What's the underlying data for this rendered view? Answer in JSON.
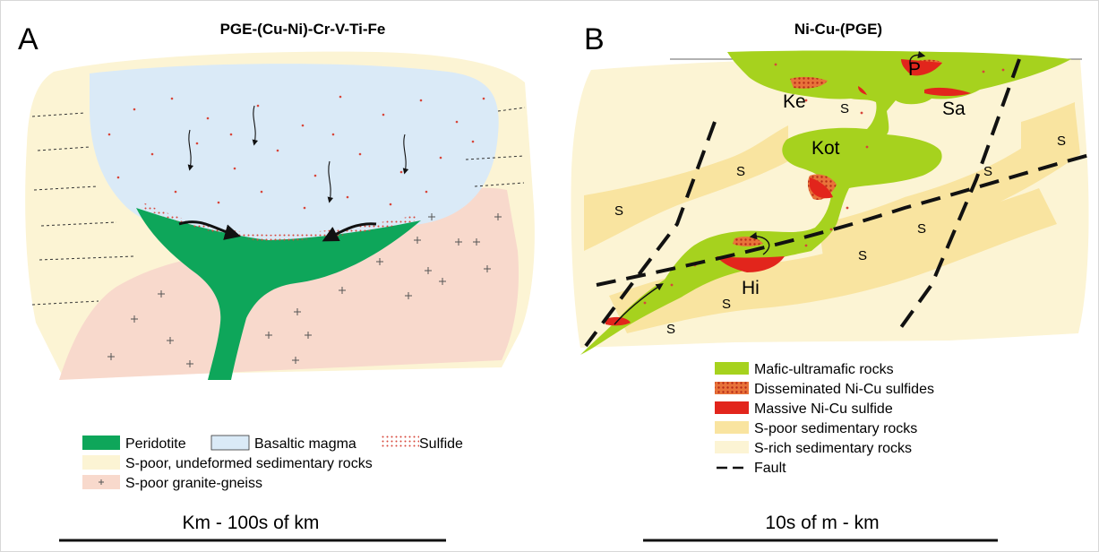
{
  "panel_a": {
    "letter": "A",
    "title": "PGE-(Cu-Ni)-Cr-V-Ti-Fe",
    "legend": {
      "peridotite": "Peridotite",
      "basaltic_magma": "Basaltic magma",
      "sulfide": "Sulfide",
      "sedimentary": "S-poor, undeformed sedimentary rocks",
      "granite": "S-poor granite-gneiss"
    },
    "scale": "Km - 100s of km"
  },
  "panel_b": {
    "letter": "B",
    "title": "Ni-Cu-(PGE)",
    "labels": {
      "p": "P",
      "ke": "Ke",
      "sa": "Sa",
      "kot": "Kot",
      "hi": "Hi",
      "s": "S"
    },
    "legend": {
      "mafic": "Mafic-ultramafic rocks",
      "disseminated": "Disseminated Ni-Cu sulfides",
      "massive": "Massive Ni-Cu sulfide",
      "s_poor": "S-poor sedimentary rocks",
      "s_rich": "S-rich sedimentary rocks",
      "fault": "Fault"
    },
    "scale": "10s of m - km"
  },
  "colors": {
    "peridotite": "#0ea65a",
    "basaltic_magma": "#daeaf7",
    "sedimentary_cream": "#fcf4d4",
    "granite_pink": "#f8d9cc",
    "mafic_green": "#a6d21e",
    "massive_red": "#e2251c",
    "s_poor_yellow": "#f9e4a0",
    "sulfide_dot": "#d7463a"
  }
}
